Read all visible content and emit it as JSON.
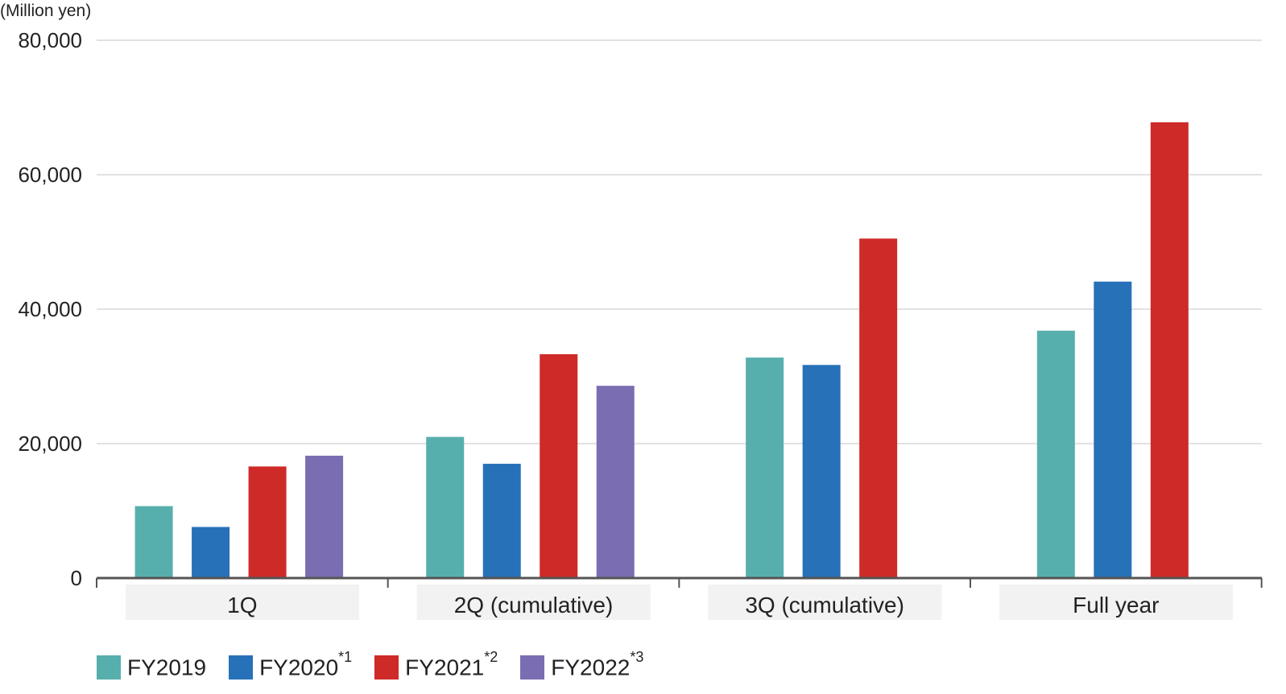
{
  "chart_data": {
    "type": "bar",
    "unit_label": "(Million yen)",
    "categories": [
      "1Q",
      "2Q (cumulative)",
      "3Q (cumulative)",
      "Full year"
    ],
    "ylim": [
      0,
      80000
    ],
    "yticks": [
      "0",
      "20,000",
      "40,000",
      "60,000",
      "80,000"
    ],
    "ytick_values": [
      0,
      20000,
      40000,
      60000,
      80000
    ],
    "grid": true,
    "legend_position": "bottom",
    "series": [
      {
        "name": "FY2019",
        "note": "",
        "color": "#57AFAD",
        "values": [
          10700,
          21000,
          32800,
          36800
        ]
      },
      {
        "name": "FY2020",
        "note": "*1",
        "color": "#2671B8",
        "values": [
          7600,
          17000,
          31700,
          44100
        ]
      },
      {
        "name": "FY2021",
        "note": "*2",
        "color": "#CE2A27",
        "values": [
          16600,
          33300,
          50500,
          67800
        ]
      },
      {
        "name": "FY2022",
        "note": "*3",
        "color": "#7B6DB1",
        "values": [
          18200,
          28600,
          null,
          null
        ]
      }
    ]
  }
}
